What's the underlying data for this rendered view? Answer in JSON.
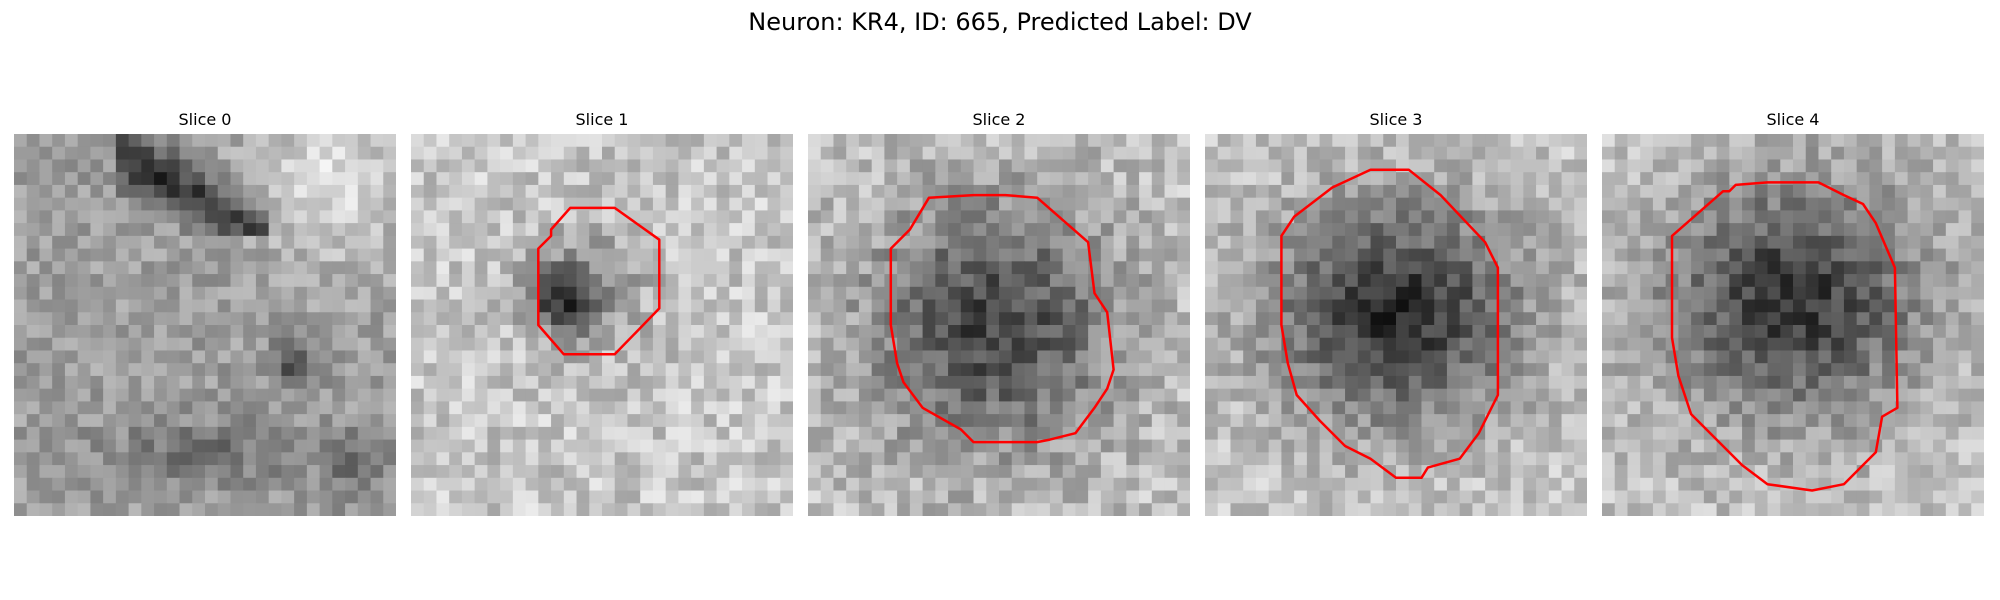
{
  "figure": {
    "title": "Neuron: KR4, ID: 665, Predicted Label: DV"
  },
  "panels": [
    {
      "title": "Slice 0",
      "texture": "noisy grayscale micrograph with a dark diagonal band at top-left and a dark blob at right",
      "contour": null
    },
    {
      "title": "Slice 1",
      "texture": "light noisy grayscale with a small dark region inside contour",
      "contour": {
        "color": "#ff0000"
      }
    },
    {
      "title": "Slice 2",
      "texture": "grayscale with large dark round cell in center",
      "contour": {
        "color": "#ff0000"
      }
    },
    {
      "title": "Slice 3",
      "texture": "grayscale with large dark round cell in center",
      "contour": {
        "color": "#ff0000"
      }
    },
    {
      "title": "Slice 4",
      "texture": "grayscale with large dark round cell in center",
      "contour": {
        "color": "#ff0000"
      }
    }
  ]
}
